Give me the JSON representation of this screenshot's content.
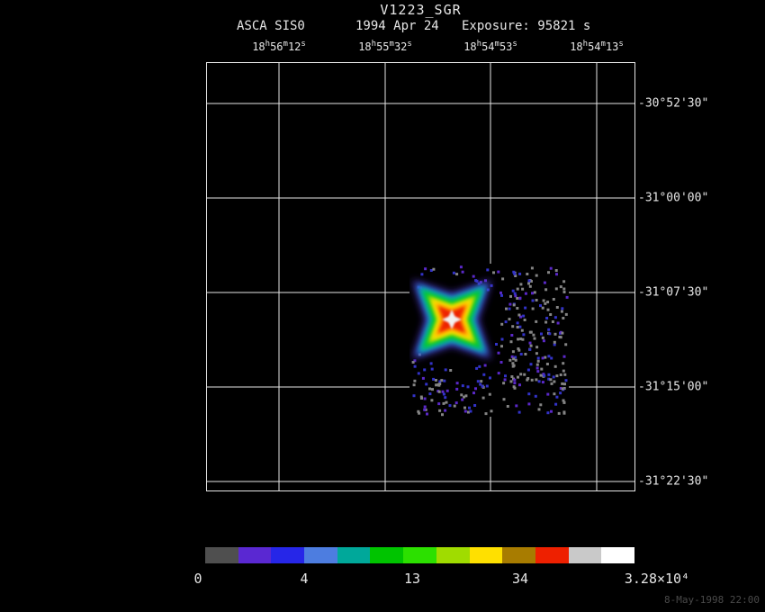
{
  "page": {
    "background": "#000000"
  },
  "header": {
    "title": "V1223_SGR",
    "instrument": "ASCA SIS0",
    "date": "1994 Apr 24",
    "exposure": "Exposure: 95821 s"
  },
  "footer": {
    "timestamp": "8-May-1998 22:00"
  },
  "chart_data": {
    "type": "heatmap",
    "title": "V1223_SGR",
    "instrument": "ASCA SIS0",
    "date": "1994 Apr 24",
    "exposure_label": "Exposure: 95821 s",
    "x_ticks": [
      "18h56m12s",
      "18h55m32s",
      "18h54m53s",
      "18h54m13s"
    ],
    "y_ticks": [
      "-30°52'30\"",
      "-31°00'00\"",
      "-31°07'30\"",
      "-31°15'00\"",
      "-31°22'30\""
    ],
    "grid": "on",
    "colorbar": {
      "segment_colors": [
        "#4f4f4f",
        "#5a28d2",
        "#2626e8",
        "#4d7de0",
        "#00a89a",
        "#00c400",
        "#2ce000",
        "#a0dc00",
        "#ffe000",
        "#a87c00",
        "#ee2000",
        "#c9c9c9",
        "#ffffff"
      ],
      "tick_labels": [
        "0",
        "4",
        "13",
        "34"
      ],
      "max_label": "3.28×10⁴"
    },
    "source_image": {
      "patch": {
        "x": 225,
        "y": 223,
        "w": 177,
        "h": 170
      },
      "center": {
        "x": 272,
        "y": 285
      },
      "psf_layers": [
        {
          "color": "#4b32c8",
          "rOuter": 62,
          "rInner": 29,
          "rot": 45,
          "blur": 4.5
        },
        {
          "color": "#00b0d2",
          "rOuter": 55,
          "rInner": 25,
          "rot": 45,
          "blur": 3.5
        },
        {
          "color": "#00c828",
          "rOuter": 48,
          "rInner": 22,
          "rot": 45,
          "blur": 3
        },
        {
          "color": "#aadc00",
          "rOuter": 38,
          "rInner": 17,
          "rot": 45,
          "blur": 2.2
        },
        {
          "color": "#ffe000",
          "rOuter": 33,
          "rInner": 15,
          "rot": 45,
          "blur": 2.2
        },
        {
          "color": "#ff9600",
          "rOuter": 26,
          "rInner": 12,
          "rot": 45,
          "blur": 2
        },
        {
          "color": "#ee2000",
          "rOuter": 21,
          "rInner": 9,
          "rot": 45,
          "blur": 1.8
        },
        {
          "color": "#f2f2f2",
          "rOuter": 11,
          "rInner": 5,
          "rot": 0,
          "blur": 1
        }
      ],
      "noise_colors": {
        "gray": "#848484",
        "blue": "#3232c8",
        "purple": "#5a28c8"
      },
      "noise_seed": 7
    }
  }
}
